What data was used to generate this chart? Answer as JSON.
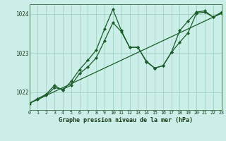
{
  "title": "Graphe pression niveau de la mer (hPa)",
  "background_color": "#cceee8",
  "grid_color": "#99ccbb",
  "line_color": "#1a5c2a",
  "x_values": [
    0,
    1,
    2,
    3,
    4,
    5,
    6,
    7,
    8,
    9,
    10,
    11,
    12,
    13,
    14,
    15,
    16,
    17,
    18,
    19,
    20,
    21,
    22,
    23
  ],
  "line_trend": [
    1021.72,
    1021.82,
    1021.92,
    1022.02,
    1022.12,
    1022.22,
    1022.32,
    1022.42,
    1022.52,
    1022.62,
    1022.72,
    1022.82,
    1022.92,
    1023.02,
    1023.12,
    1023.22,
    1023.32,
    1023.42,
    1023.52,
    1023.62,
    1023.72,
    1023.82,
    1023.92,
    1024.02
  ],
  "line_main": [
    1021.72,
    1021.84,
    1021.95,
    1022.18,
    1022.05,
    1022.28,
    1022.58,
    1022.82,
    1023.08,
    1023.62,
    1024.12,
    1023.58,
    1023.15,
    1023.15,
    1022.78,
    1022.62,
    1022.68,
    1023.02,
    1023.58,
    1023.82,
    1024.05,
    1024.08,
    1023.92,
    1024.05
  ],
  "line_smooth": [
    1021.72,
    1021.82,
    1021.92,
    1022.12,
    1022.08,
    1022.18,
    1022.48,
    1022.65,
    1022.88,
    1023.32,
    1023.78,
    1023.55,
    1023.15,
    1023.15,
    1022.8,
    1022.62,
    1022.68,
    1023.02,
    1023.28,
    1023.52,
    1024.02,
    1024.05,
    1023.92,
    1024.02
  ],
  "ylim": [
    1021.55,
    1024.25
  ],
  "yticks": [
    1022,
    1023,
    1024
  ],
  "xlim": [
    0,
    23
  ]
}
